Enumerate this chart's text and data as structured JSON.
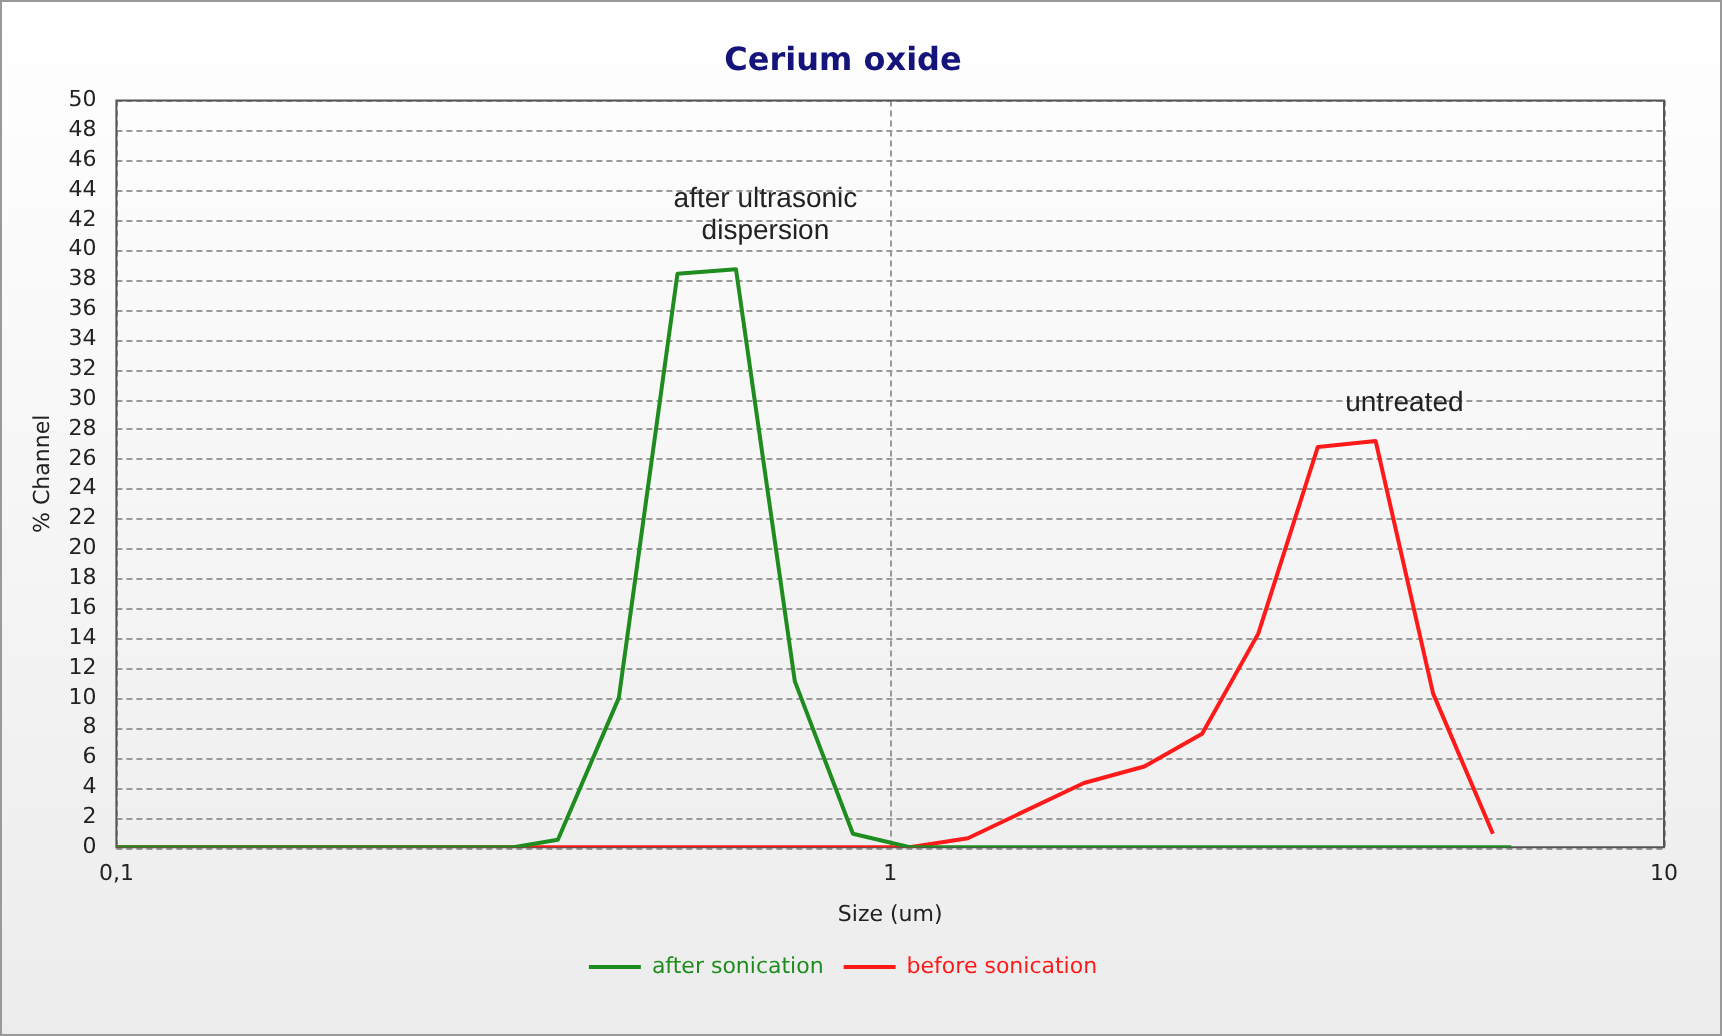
{
  "chart_data": {
    "type": "line",
    "title": "Cerium oxide",
    "xlabel": "Size (um)",
    "ylabel": "% Channel",
    "log": "x",
    "xlim": [
      0.1,
      10
    ],
    "xticks": [
      {
        "value": 0.1,
        "label": "0,1"
      },
      1,
      10
    ],
    "ylim": [
      0,
      50
    ],
    "yticks": [
      0,
      2,
      4,
      6,
      8,
      10,
      12,
      14,
      16,
      18,
      20,
      22,
      24,
      26,
      28,
      30,
      32,
      34,
      36,
      38,
      40,
      42,
      44,
      46,
      48,
      50
    ],
    "grid": true,
    "legend": "bottom",
    "marker": "none",
    "line_style": "solid",
    "series": [
      {
        "name": "after sonication",
        "color": "#1e8c1e",
        "x": [
          0.1,
          0.326,
          0.372,
          0.446,
          0.531,
          0.632,
          0.753,
          0.895,
          1.06,
          6.35
        ],
        "values": [
          0,
          0,
          0.5,
          10.0,
          38.4,
          38.7,
          11.1,
          0.9,
          0,
          0
        ]
      },
      {
        "name": "before sonication",
        "color": "#ff1a1a",
        "x": [
          0.1,
          1.06,
          1.26,
          1.78,
          2.13,
          2.53,
          2.99,
          3.57,
          4.24,
          5.03,
          6.01
        ],
        "values": [
          0,
          0,
          0.6,
          4.3,
          5.4,
          7.6,
          14.3,
          26.8,
          27.2,
          10.3,
          0.9
        ]
      }
    ],
    "annotations": [
      "after ultrasonic dispersion",
      "untreated"
    ]
  }
}
